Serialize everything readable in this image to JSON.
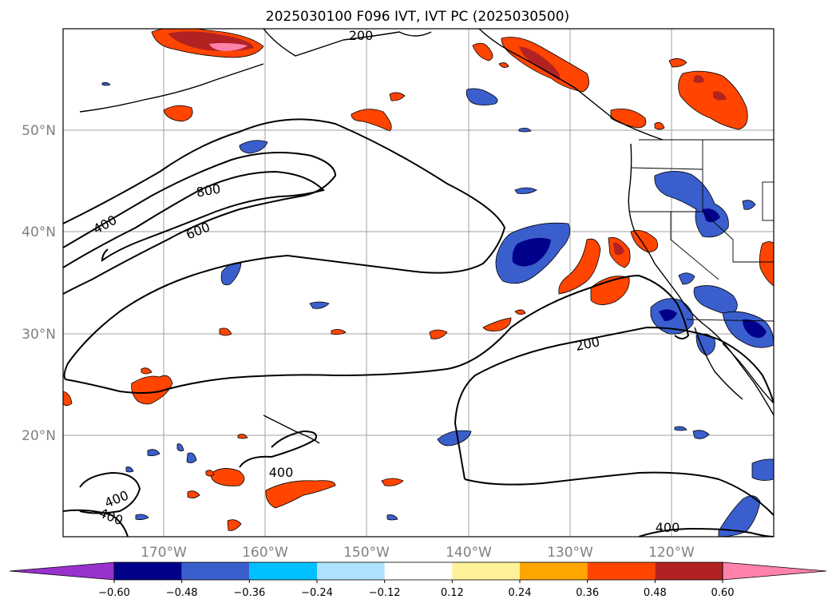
{
  "title": "2025030100 F096 IVT, IVT PC (2025030500)",
  "lat_labels": [
    "50°N",
    "40°N",
    "30°N",
    "20°N"
  ],
  "lon_labels": [
    "170°W",
    "160°W",
    "150°W",
    "140°W",
    "130°W",
    "120°W"
  ],
  "contour_labels": [
    "200",
    "800",
    "400",
    "600",
    "200",
    "400",
    "400",
    "400",
    "400"
  ],
  "colorbar": {
    "ticks": [
      "−0.60",
      "−0.48",
      "−0.36",
      "−0.24",
      "−0.12",
      "0.12",
      "0.24",
      "0.36",
      "0.48",
      "0.60"
    ],
    "colors": [
      "#9932cc",
      "#00008b",
      "#3a5fcd",
      "#00bfff",
      "#b0e2ff",
      "#ffffff",
      "#fff09a",
      "#ffa500",
      "#ff4500",
      "#b22222",
      "#ff82ab"
    ]
  },
  "colors": {
    "pc_positive_dark": "#b22222",
    "pc_positive_mid": "#ff4500",
    "pc_positive_light": "#ffa500",
    "pc_positive_pale": "#fff09a",
    "pc_positive_max": "#ff82ab",
    "pc_negative_dark": "#00008b",
    "pc_negative_mid": "#3a5fcd",
    "pc_negative_light": "#00bfff",
    "pc_negative_pale": "#b0e2ff"
  }
}
